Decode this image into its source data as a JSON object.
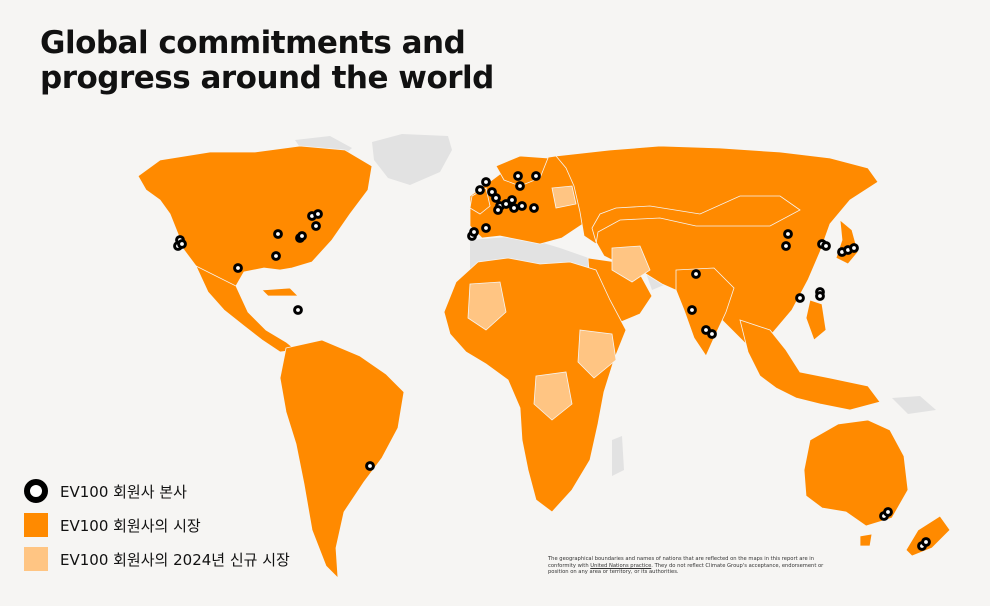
{
  "title": {
    "line1": "Global commitments and",
    "line2": "progress around the world"
  },
  "colors": {
    "background": "#f6f5f3",
    "market": "#ff8a00",
    "new_market_2024": "#ffc583",
    "non_market": "#e2e2e2",
    "hq_marker_ring": "#000000",
    "hq_marker_fill": "#ffffff"
  },
  "legend": [
    {
      "key": "hq",
      "label": "EV100 회원사 본사",
      "swatch": "hq-marker-icon"
    },
    {
      "key": "market",
      "label": "EV100 회원사의 시장",
      "swatch": "orange-square-icon"
    },
    {
      "key": "new_market_2024",
      "label": "EV100 회원사의 2024년 신규 시장",
      "swatch": "light-orange-square-icon"
    }
  ],
  "disclaimer": {
    "before_link": "The geographical boundaries and names of nations that are reflected on the maps in this report are in conformity with ",
    "link_text": "United Nations practice",
    "after_link": ". They do not reflect Climate Group's acceptance, endorsement or position on any area or territory, or its authorities."
  }
}
